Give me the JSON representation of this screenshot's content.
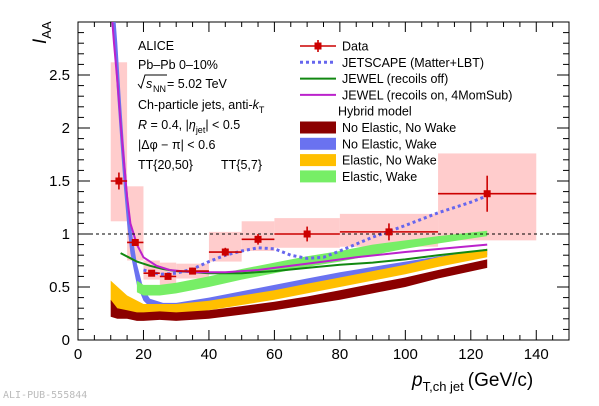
{
  "chart_data": {
    "type": "line",
    "xlabel_main": "p",
    "xlabel_sub": "T,ch jet",
    "xlabel_unit": "(GeV/c)",
    "ylabel_main": "I",
    "ylabel_sub": "AA",
    "xlim": [
      0,
      150
    ],
    "ylim": [
      0,
      3
    ],
    "xticks": [
      "0",
      "20",
      "40",
      "60",
      "80",
      "100",
      "120",
      "140"
    ],
    "xtick_values": [
      0,
      20,
      40,
      60,
      80,
      100,
      120,
      140
    ],
    "yticks": [
      "0",
      "0.5",
      "1",
      "1.5",
      "2",
      "2.5"
    ],
    "ytick_values": [
      0,
      0.5,
      1,
      1.5,
      2,
      2.5
    ],
    "reference_line": 1,
    "annotations": {
      "experiment": "ALICE",
      "system": "Pb–Pb 0–10%",
      "energy_sym": "s",
      "energy_sub": "NN",
      "energy_val": " = 5.02 TeV",
      "jets_pre": "Ch-particle jets, anti-",
      "jets_k": "k",
      "jets_ksub": "T",
      "radius_pre": "R",
      "radius_mid": " = 0.4, |",
      "radius_eta": "η",
      "radius_etasub": "jet",
      "radius_post": "| < 0.5",
      "dphi": "Δφ − π| < 0.6",
      "dphi_bar": "|",
      "tt1": "TT{20,50}",
      "tt2": "TT{5,7}"
    },
    "legend": [
      {
        "label": "Data",
        "kind": "marker",
        "color": "#cc0000"
      },
      {
        "label": "JETSCAPE (Matter+LBT)",
        "kind": "dotted",
        "color": "#6666ee"
      },
      {
        "label": "JEWEL (recoils off)",
        "kind": "line",
        "color": "#118811"
      },
      {
        "label": "JEWEL (recoils on, 4MomSub)",
        "kind": "line",
        "color": "#bb22cc"
      },
      {
        "label": "Hybrid model",
        "kind": "header",
        "color": "#000000"
      },
      {
        "label": "No Elastic, No Wake",
        "kind": "band",
        "color": "#8b0000"
      },
      {
        "label": "No Elastic, Wake",
        "kind": "band",
        "color": "#6a72f0"
      },
      {
        "label": "Elastic, No Wake",
        "kind": "band",
        "color": "#ffbf00"
      },
      {
        "label": "Elastic, Wake",
        "kind": "band",
        "color": "#77ee66"
      }
    ],
    "series": [
      {
        "name": "Data",
        "color": "#cc0000",
        "points": [
          {
            "x": 12.5,
            "y": 1.5,
            "xerr": 2.5,
            "yerr": 0.08,
            "syslo": 1.12,
            "syshi": 2.62
          },
          {
            "x": 17.5,
            "y": 0.92,
            "xerr": 2.5,
            "yerr": 0.03,
            "syslo": 0.75,
            "syshi": 1.45
          },
          {
            "x": 22.5,
            "y": 0.63,
            "xerr": 2.5,
            "yerr": 0.03,
            "syslo": 0.57,
            "syshi": 0.75
          },
          {
            "x": 27.5,
            "y": 0.6,
            "xerr": 2.5,
            "yerr": 0.03,
            "syslo": 0.5,
            "syshi": 0.73
          },
          {
            "x": 35,
            "y": 0.65,
            "xerr": 5,
            "yerr": 0.03,
            "syslo": 0.58,
            "syshi": 0.72
          },
          {
            "x": 45,
            "y": 0.83,
            "xerr": 5,
            "yerr": 0.04,
            "syslo": 0.74,
            "syshi": 1.02
          },
          {
            "x": 55,
            "y": 0.95,
            "xerr": 5,
            "yerr": 0.05,
            "syslo": 0.84,
            "syshi": 1.12
          },
          {
            "x": 70,
            "y": 1.0,
            "xerr": 10,
            "yerr": 0.07,
            "syslo": 0.87,
            "syshi": 1.15
          },
          {
            "x": 95,
            "y": 1.02,
            "xerr": 15,
            "yerr": 0.08,
            "syslo": 0.88,
            "syshi": 1.19
          },
          {
            "x": 125,
            "y": 1.38,
            "xerr": 15,
            "yerr": 0.17,
            "syslo": 0.94,
            "syshi": 1.76
          }
        ]
      },
      {
        "name": "JETSCAPE (Matter+LBT)",
        "color": "#6666ee",
        "points": [
          [
            20,
            0.66
          ],
          [
            25,
            0.62
          ],
          [
            30,
            0.63
          ],
          [
            35,
            0.67
          ],
          [
            40,
            0.74
          ],
          [
            45,
            0.8
          ],
          [
            50,
            0.84
          ],
          [
            55,
            0.87
          ],
          [
            60,
            0.86
          ],
          [
            65,
            0.8
          ],
          [
            70,
            0.77
          ],
          [
            75,
            0.78
          ],
          [
            80,
            0.84
          ],
          [
            90,
            0.97
          ],
          [
            100,
            1.08
          ],
          [
            110,
            1.2
          ],
          [
            120,
            1.3
          ],
          [
            125,
            1.36
          ]
        ]
      },
      {
        "name": "JEWEL (recoils off)",
        "color": "#118811",
        "points": [
          [
            13,
            0.82
          ],
          [
            18,
            0.74
          ],
          [
            22,
            0.7
          ],
          [
            26,
            0.67
          ],
          [
            30,
            0.65
          ],
          [
            40,
            0.63
          ],
          [
            50,
            0.63
          ],
          [
            60,
            0.65
          ],
          [
            70,
            0.68
          ],
          [
            80,
            0.71
          ],
          [
            90,
            0.73
          ],
          [
            100,
            0.76
          ],
          [
            110,
            0.8
          ],
          [
            125,
            0.85
          ]
        ]
      },
      {
        "name": "JEWEL (recoils on, 4MomSub)",
        "color": "#bb22cc",
        "points": [
          [
            10,
            3.2
          ],
          [
            11,
            2.8
          ],
          [
            12,
            2.45
          ],
          [
            13,
            2.05
          ],
          [
            14,
            1.7
          ],
          [
            15,
            1.35
          ],
          [
            16,
            1.1
          ],
          [
            18,
            0.9
          ],
          [
            20,
            0.78
          ],
          [
            24,
            0.7
          ],
          [
            28,
            0.66
          ],
          [
            35,
            0.64
          ],
          [
            45,
            0.64
          ],
          [
            55,
            0.66
          ],
          [
            65,
            0.7
          ],
          [
            75,
            0.74
          ],
          [
            85,
            0.78
          ],
          [
            100,
            0.83
          ],
          [
            125,
            0.9
          ]
        ]
      },
      {
        "name": "No Elastic, No Wake",
        "color": "#8b0000",
        "lo": [
          [
            10,
            0.22
          ],
          [
            12,
            0.2
          ],
          [
            15,
            0.2
          ],
          [
            18,
            0.18
          ],
          [
            20,
            0.18
          ],
          [
            25,
            0.19
          ],
          [
            30,
            0.18
          ],
          [
            40,
            0.2
          ],
          [
            50,
            0.24
          ],
          [
            60,
            0.28
          ],
          [
            70,
            0.33
          ],
          [
            80,
            0.38
          ],
          [
            90,
            0.44
          ],
          [
            100,
            0.5
          ],
          [
            110,
            0.58
          ],
          [
            125,
            0.68
          ]
        ],
        "hi": [
          [
            10,
            0.38
          ],
          [
            12,
            0.3
          ],
          [
            15,
            0.28
          ],
          [
            18,
            0.26
          ],
          [
            20,
            0.26
          ],
          [
            25,
            0.27
          ],
          [
            30,
            0.26
          ],
          [
            40,
            0.28
          ],
          [
            50,
            0.32
          ],
          [
            60,
            0.36
          ],
          [
            70,
            0.41
          ],
          [
            80,
            0.47
          ],
          [
            90,
            0.53
          ],
          [
            100,
            0.59
          ],
          [
            110,
            0.66
          ],
          [
            125,
            0.76
          ]
        ]
      },
      {
        "name": "No Elastic, Wake",
        "color": "#6a72f0",
        "lo": [
          [
            10,
            3.2
          ],
          [
            11,
            2.8
          ],
          [
            12,
            2.3
          ],
          [
            13,
            1.85
          ],
          [
            14,
            1.45
          ],
          [
            15,
            1.1
          ],
          [
            16,
            0.82
          ],
          [
            18,
            0.52
          ],
          [
            20,
            0.37
          ],
          [
            22,
            0.31
          ],
          [
            26,
            0.29
          ],
          [
            30,
            0.29
          ],
          [
            40,
            0.33
          ],
          [
            50,
            0.39
          ],
          [
            60,
            0.45
          ],
          [
            70,
            0.52
          ],
          [
            80,
            0.58
          ],
          [
            100,
            0.68
          ],
          [
            125,
            0.8
          ]
        ],
        "hi": [
          [
            10,
            3.2
          ],
          [
            11,
            3.2
          ],
          [
            12,
            2.8
          ],
          [
            13,
            2.3
          ],
          [
            14,
            1.85
          ],
          [
            15,
            1.45
          ],
          [
            16,
            1.1
          ],
          [
            18,
            0.72
          ],
          [
            20,
            0.48
          ],
          [
            22,
            0.39
          ],
          [
            26,
            0.35
          ],
          [
            30,
            0.35
          ],
          [
            40,
            0.4
          ],
          [
            50,
            0.46
          ],
          [
            60,
            0.52
          ],
          [
            70,
            0.58
          ],
          [
            80,
            0.64
          ],
          [
            100,
            0.74
          ],
          [
            125,
            0.86
          ]
        ]
      },
      {
        "name": "Elastic, No Wake",
        "color": "#ffbf00",
        "lo": [
          [
            10,
            0.34
          ],
          [
            15,
            0.24
          ],
          [
            20,
            0.22
          ],
          [
            25,
            0.23
          ],
          [
            30,
            0.24
          ],
          [
            40,
            0.28
          ],
          [
            50,
            0.33
          ],
          [
            60,
            0.38
          ],
          [
            70,
            0.44
          ],
          [
            80,
            0.5
          ],
          [
            90,
            0.56
          ],
          [
            100,
            0.62
          ],
          [
            110,
            0.69
          ],
          [
            125,
            0.78
          ]
        ],
        "hi": [
          [
            10,
            0.56
          ],
          [
            15,
            0.42
          ],
          [
            20,
            0.34
          ],
          [
            25,
            0.34
          ],
          [
            30,
            0.34
          ],
          [
            40,
            0.37
          ],
          [
            50,
            0.42
          ],
          [
            60,
            0.47
          ],
          [
            70,
            0.53
          ],
          [
            80,
            0.59
          ],
          [
            90,
            0.65
          ],
          [
            100,
            0.71
          ],
          [
            110,
            0.78
          ],
          [
            125,
            0.86
          ]
        ]
      },
      {
        "name": "Elastic, Wake",
        "color": "#77ee66",
        "lo": [
          [
            18,
            0.45
          ],
          [
            20,
            0.42
          ],
          [
            25,
            0.42
          ],
          [
            30,
            0.44
          ],
          [
            40,
            0.5
          ],
          [
            50,
            0.57
          ],
          [
            60,
            0.63
          ],
          [
            70,
            0.69
          ],
          [
            80,
            0.74
          ],
          [
            90,
            0.8
          ],
          [
            100,
            0.86
          ],
          [
            110,
            0.91
          ],
          [
            125,
            0.98
          ]
        ],
        "hi": [
          [
            18,
            0.56
          ],
          [
            20,
            0.52
          ],
          [
            25,
            0.52
          ],
          [
            30,
            0.54
          ],
          [
            40,
            0.6
          ],
          [
            50,
            0.67
          ],
          [
            60,
            0.73
          ],
          [
            70,
            0.79
          ],
          [
            80,
            0.84
          ],
          [
            90,
            0.9
          ],
          [
            100,
            0.94
          ],
          [
            110,
            0.98
          ],
          [
            125,
            1.03
          ]
        ]
      }
    ]
  },
  "footer_id": "ALI-PUB-555844"
}
